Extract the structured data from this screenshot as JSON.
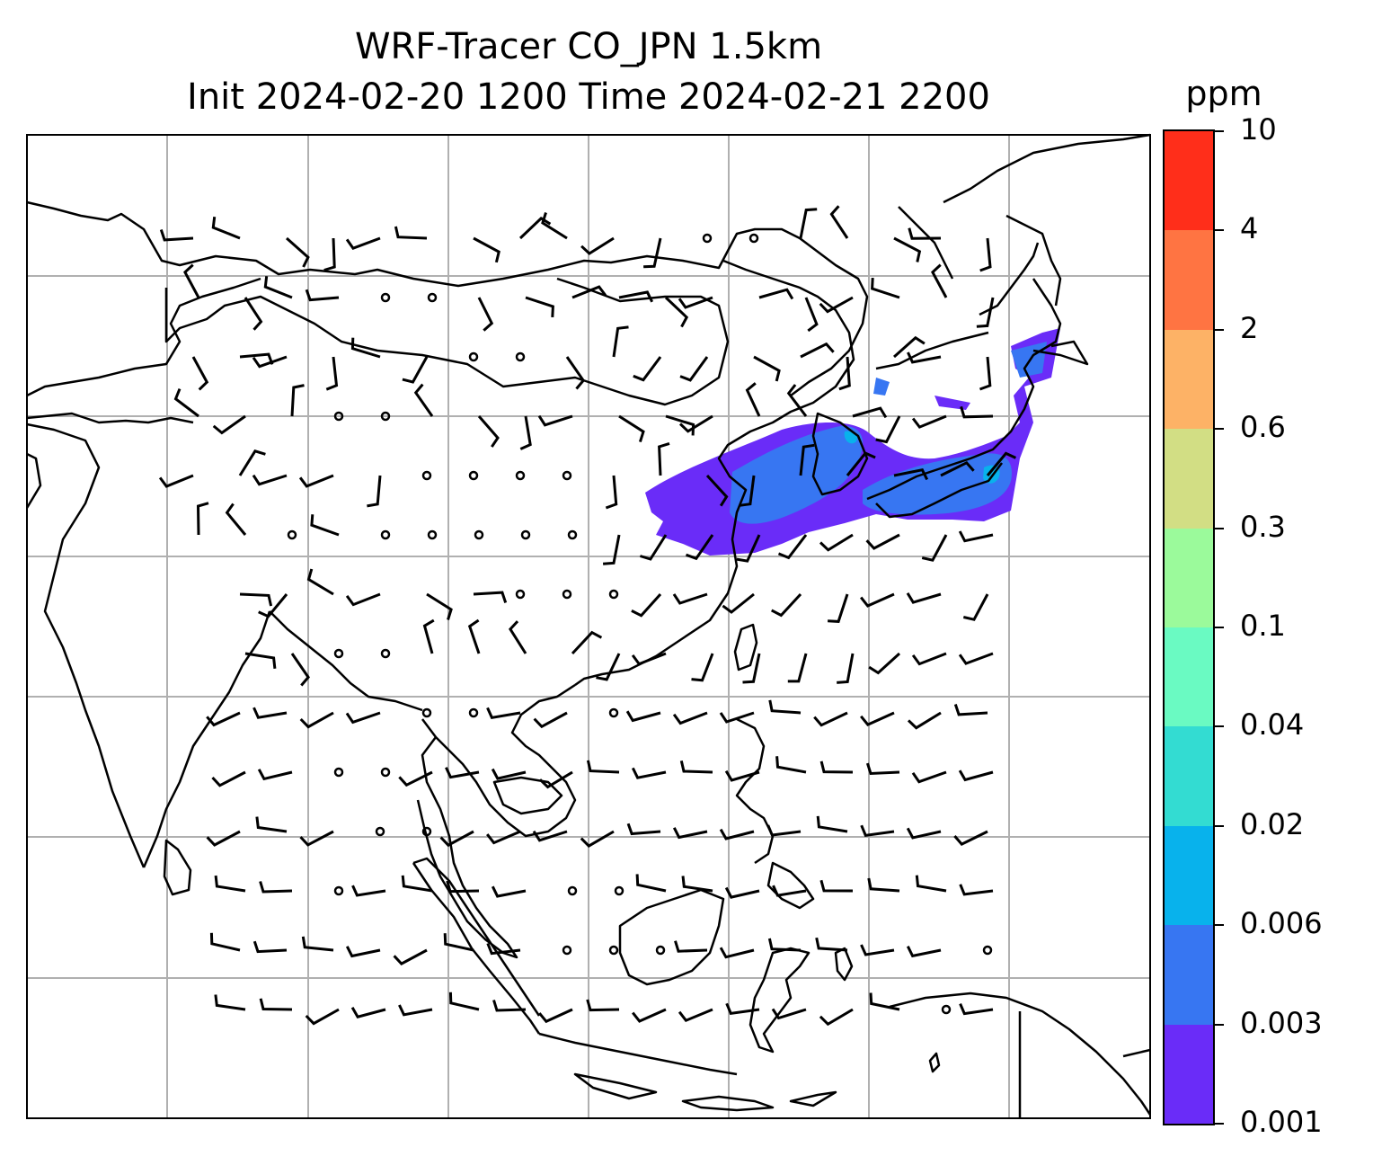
{
  "title": {
    "line1": "WRF-Tracer CO_JPN 1.5km",
    "line2": "Init 2024-02-20 1200 Time 2024-02-21 2200"
  },
  "colorbar": {
    "unit": "ppm",
    "levels": [
      "0.001",
      "0.003",
      "0.006",
      "0.02",
      "0.04",
      "0.1",
      "0.3",
      "0.6",
      "2",
      "4",
      "10"
    ],
    "colors": [
      "#6a2cf8",
      "#3776f2",
      "#08b2ec",
      "#33dcd2",
      "#6afac2",
      "#9bfa9b",
      "#d2de84",
      "#fdb266",
      "#ff7442",
      "#ff2e1a"
    ]
  },
  "map": {
    "land_outline_color": "#000000",
    "gridline_color": "#b0b0b0",
    "plume_colors": {
      "low": "#6a2cf8",
      "mid": "#3776f2",
      "high": "#08b2ec"
    }
  }
}
